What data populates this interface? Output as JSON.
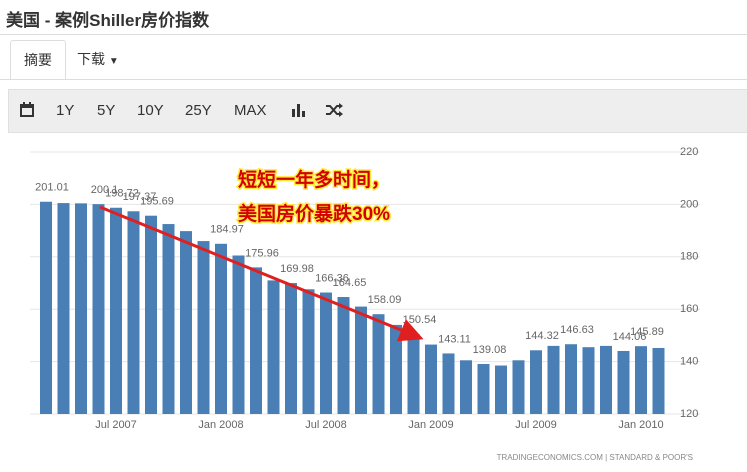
{
  "header": {
    "title": "美国 - 案例Shiller房价指数"
  },
  "tabs": [
    "摘要",
    "下载"
  ],
  "toolbar": [
    "1Y",
    "5Y",
    "10Y",
    "25Y",
    "MAX"
  ],
  "chart_data": {
    "type": "bar",
    "categories": [
      null,
      null,
      null,
      null,
      "Jul 2007",
      null,
      null,
      null,
      null,
      null,
      "Jan 2008",
      null,
      null,
      null,
      null,
      null,
      "Jul 2008",
      null,
      null,
      null,
      null,
      null,
      "Jan 2009",
      null,
      null,
      null,
      null,
      null,
      "Jul 2009",
      null,
      null,
      null,
      null,
      null,
      "Jan 2010",
      null
    ],
    "values": [
      201.01,
      200.5,
      200.4,
      200.1,
      198.72,
      197.37,
      195.69,
      192.5,
      189.8,
      186.0,
      184.97,
      180.5,
      175.96,
      171.0,
      169.98,
      167.6,
      166.36,
      164.65,
      161.0,
      158.09,
      154.0,
      150.54,
      146.5,
      143.11,
      140.5,
      139.08,
      138.5,
      140.5,
      144.32,
      146.0,
      146.63,
      145.5,
      146.0,
      144.06,
      145.89,
      145.2
    ],
    "value_labels": [
      "201.01",
      null,
      null,
      "200.1",
      "198.72",
      "197.37",
      "195.69",
      null,
      null,
      null,
      "184.97",
      null,
      "175.96",
      null,
      "169.98",
      null,
      "166.36",
      "164.65",
      null,
      "158.09",
      null,
      "150.54",
      null,
      "143.11",
      null,
      "139.08",
      null,
      null,
      "144.32",
      null,
      "146.63",
      null,
      null,
      "144.06",
      "145.89",
      null
    ],
    "color": "#4a7fb5",
    "ylim": [
      120,
      220
    ],
    "yticks": [
      120,
      140,
      160,
      180,
      200,
      220
    ],
    "grid": true,
    "annotations": [
      "短短一年多时间，",
      "美国房价暴跌30%"
    ],
    "source": "TRADINGECONOMICS.COM | STANDARD & POOR'S"
  }
}
